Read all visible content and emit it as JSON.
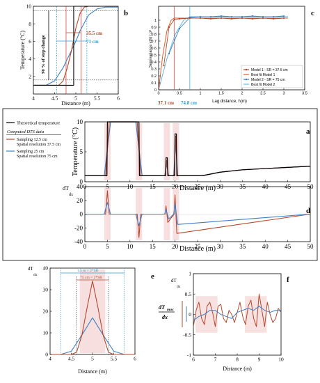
{
  "colors": {
    "theoretical": "#000000",
    "model1": "#b5472a",
    "model2": "#3d7fc4",
    "shade": "#f3c9c9",
    "vline_red": "#d22b2b",
    "vline_blue": "#2a9fd6",
    "dotted": "#222222"
  },
  "panels": {
    "a": {
      "letter": "a",
      "ylabel": "Temperature (°C)",
      "xlabel": "Distance (m)",
      "legend": {
        "theoretical": "Theoretical temperature",
        "dts_header": "Computed DTS data",
        "s1_line1": "Sampling 12.5 cm",
        "s1_line2": "Spatial resolution 37.5 cm",
        "s2_line1": "Sampling 25 cm",
        "s2_line2": "Spatial resolution 75 cm"
      }
    },
    "b": {
      "letter": "b",
      "ylabel": "Temperature (°C)",
      "xlabel": "Distance (m)",
      "annot_red": "35.5 cm",
      "annot_blue": "71 cm",
      "annot_step": "90 % of step change"
    },
    "c": {
      "letter": "c",
      "ylabel": "Semivariance γ(h) / σ²",
      "xlabel": "Lag distance, h(m)",
      "annot_red": "37.1 cm",
      "annot_blue": "74.8 cm",
      "legend": {
        "m1": "Model 1 - SR = 37.5 cm",
        "bf1": "Best fit Model 1",
        "m2": "Model 2 - SR = 75 cm",
        "bf2": "Best fit Model 2"
      }
    },
    "d": {
      "letter": "d",
      "ylabel_main": "dT",
      "ylabel_sub": "dx",
      "xlabel": "Distance (m)"
    },
    "e": {
      "letter": "e",
      "ylabel_main": "dT",
      "ylabel_sub": "dx",
      "xlabel": "Distance (m)",
      "annot_outer": "1.5 m = 2*SR",
      "annot_inner": "75 cm = 2*SR"
    },
    "f": {
      "letter": "f",
      "ylabel_main": "dT",
      "ylabel_sub": "dx",
      "xlabel": "Distance (m)",
      "annot_main": "dT",
      "annot_sub_max": "max",
      "annot_den": "dx"
    }
  },
  "chart_data": [
    {
      "panel": "a",
      "type": "line",
      "xlabel": "Distance (m)",
      "ylabel": "Temperature (°C)",
      "xlim": [
        0,
        50
      ],
      "ylim": [
        0,
        10
      ],
      "xticks": [
        0,
        5,
        10,
        15,
        20,
        25,
        30,
        35,
        40,
        45,
        50
      ],
      "yticks": [
        0,
        5,
        10
      ],
      "series": [
        {
          "name": "Theoretical temperature",
          "x": [
            0,
            4.9,
            5,
            12,
            12.1,
            17.9,
            18,
            18.3,
            18.4,
            19.9,
            20,
            20.3,
            20.4,
            26,
            30,
            35,
            40,
            45,
            50
          ],
          "y": [
            1,
            1,
            10,
            10,
            1,
            1,
            4,
            4,
            1,
            1,
            8,
            8,
            1,
            1,
            1.6,
            2,
            2.2,
            2.4,
            2.6
          ]
        },
        {
          "name": "Sampling 12.5 cm / Spatial resolution 37.5 cm",
          "x": [
            0,
            4.6,
            5,
            5.4,
            11.6,
            12,
            12.4,
            17.8,
            18.15,
            18.5,
            19.8,
            20.15,
            20.5,
            26,
            30,
            35,
            40,
            45,
            50
          ],
          "y": [
            1,
            1,
            5.5,
            10,
            10,
            5.5,
            1,
            1,
            3.6,
            1,
            1,
            7.6,
            1,
            1,
            1.6,
            2,
            2.2,
            2.4,
            2.6
          ]
        },
        {
          "name": "Sampling 25 cm / Spatial resolution 75 cm",
          "x": [
            0,
            4.3,
            5,
            5.7,
            11.3,
            12,
            12.7,
            17.7,
            18.15,
            18.6,
            19.7,
            20.15,
            20.6,
            26,
            30,
            35,
            40,
            45,
            50
          ],
          "y": [
            1,
            1,
            5.5,
            10,
            10,
            5.5,
            1,
            1,
            2.9,
            1,
            1,
            6.6,
            1,
            1,
            1.6,
            2,
            2.2,
            2.4,
            2.6
          ]
        }
      ]
    },
    {
      "panel": "b",
      "type": "line",
      "xlabel": "Distance (m)",
      "ylabel": "Temperature (°C)",
      "xlim": [
        4,
        6
      ],
      "ylim": [
        0,
        10
      ],
      "xticks": [
        4,
        4.5,
        5,
        5.5,
        6
      ],
      "yticks": [
        2,
        4,
        6,
        8,
        10
      ],
      "series": [
        {
          "name": "Theoretical temperature",
          "x": [
            4,
            4.95,
            4.95,
            6
          ],
          "y": [
            1,
            1,
            10,
            10
          ]
        },
        {
          "name": "Sampling 12.5 cm / Spatial resolution 37.5 cm",
          "x": [
            4,
            4.6,
            4.7,
            4.8,
            4.9,
            5.0,
            5.1,
            5.2,
            5.3,
            6
          ],
          "y": [
            1,
            1,
            1.5,
            3,
            5,
            7.5,
            9.2,
            9.9,
            10,
            10
          ]
        },
        {
          "name": "Sampling 25 cm / Spatial resolution 75 cm",
          "x": [
            4,
            4.3,
            4.5,
            4.7,
            4.9,
            5.0,
            5.1,
            5.3,
            5.5,
            5.7,
            6
          ],
          "y": [
            1,
            1,
            1.5,
            3,
            5,
            6,
            7.2,
            9,
            9.7,
            9.9,
            9.9
          ]
        }
      ],
      "vlines_red": [
        4.77,
        5.12
      ],
      "vlines_blue": [
        4.55,
        5.26
      ],
      "hlines": [
        1.6,
        9.5
      ]
    },
    {
      "panel": "c",
      "type": "line",
      "xlabel": "Lag distance, h(m)",
      "ylabel": "Semivariance γ(h) / σ²",
      "xlim": [
        0,
        3.5
      ],
      "ylim": [
        0,
        1.2
      ],
      "xticks": [
        0,
        0.5,
        1,
        1.5,
        2,
        2.5,
        3,
        3.5
      ],
      "yticks": [
        0,
        0.1,
        0.2,
        0.3,
        0.4,
        0.5,
        0.6,
        0.7,
        0.8,
        0.9,
        1
      ],
      "vlines": [
        0.371,
        0.748
      ],
      "series": [
        {
          "name": "Model 1 - SR = 37.5 cm",
          "x": [
            0.125,
            0.25,
            0.375,
            0.5,
            0.75,
            1,
            1.25,
            1.5,
            1.75,
            2,
            2.25,
            2.5,
            2.75,
            3
          ],
          "y": [
            0.35,
            0.9,
            1.01,
            1.02,
            1.03,
            1.03,
            1.02,
            1.03,
            1.02,
            1.03,
            1.02,
            1.03,
            1.02,
            1.03
          ]
        },
        {
          "name": "Best fit Model 1",
          "x": [
            0,
            0.1,
            0.2,
            0.3,
            0.371,
            3.1
          ],
          "y": [
            0,
            0.5,
            0.85,
            1.0,
            1.03,
            1.03
          ]
        },
        {
          "name": "Model 2 - SR = 75 cm",
          "x": [
            0.25,
            0.5,
            0.75,
            1,
            1.25,
            1.5,
            1.75,
            2,
            2.25,
            2.5,
            2.75,
            3
          ],
          "y": [
            0.52,
            0.88,
            1.04,
            1.05,
            1.05,
            1.06,
            1.05,
            1.05,
            1.06,
            1.05,
            1.05,
            1.06
          ]
        },
        {
          "name": "Best fit Model 2",
          "x": [
            0,
            0.2,
            0.4,
            0.6,
            0.748,
            3.1
          ],
          "y": [
            0,
            0.45,
            0.8,
            1.0,
            1.05,
            1.05
          ]
        }
      ]
    },
    {
      "panel": "d",
      "type": "line",
      "xlabel": "Distance (m)",
      "ylabel": "dT/dx",
      "xlim": [
        0,
        50
      ],
      "ylim": [
        -40,
        40
      ],
      "xticks": [
        0,
        5,
        10,
        15,
        20,
        25,
        30,
        35,
        40,
        45,
        50
      ],
      "yticks": [
        -40,
        -20,
        0,
        20,
        40
      ],
      "series": [
        {
          "name": "Sampling 12.5 cm / Spatial resolution 37.5 cm",
          "x": [
            0,
            4.6,
            5,
            5.4,
            11.6,
            12,
            12.4,
            17.8,
            18.0,
            18.2,
            18.4,
            19.8,
            20.0,
            20.2,
            20.4,
            50
          ],
          "y": [
            0,
            0,
            34,
            0,
            0,
            -34,
            0,
            0,
            12,
            0,
            -12,
            0,
            28,
            0,
            -28,
            0
          ]
        },
        {
          "name": "Sampling 25 cm / Spatial resolution 75 cm",
          "x": [
            0,
            4.3,
            5,
            5.7,
            11.3,
            12,
            12.7,
            17.7,
            18.0,
            18.3,
            18.6,
            19.7,
            20.0,
            20.3,
            20.6,
            50
          ],
          "y": [
            0,
            0,
            17,
            0,
            0,
            -17,
            0,
            0,
            7,
            0,
            -7,
            0,
            15,
            0,
            -15,
            0
          ]
        }
      ]
    },
    {
      "panel": "e",
      "type": "line",
      "xlabel": "Distance (m)",
      "ylabel": "dT/dx",
      "xlim": [
        4,
        6
      ],
      "ylim": [
        0,
        40
      ],
      "xticks": [
        4,
        4.5,
        5,
        5.5,
        6
      ],
      "yticks": [
        0,
        10,
        20,
        30,
        40
      ],
      "vlines_blue": [
        4.25,
        5.75
      ],
      "vlines_red": [
        4.62,
        5.38
      ],
      "series": [
        {
          "name": "Sampling 12.5 cm / Spatial resolution 37.5 cm",
          "x": [
            4,
            4.5,
            4.625,
            4.75,
            4.875,
            5,
            5.125,
            5.25,
            5.375,
            5.5,
            6
          ],
          "y": [
            0,
            0,
            1,
            9,
            22,
            34,
            22,
            9,
            1,
            0,
            0
          ]
        },
        {
          "name": "Sampling 25 cm / Spatial resolution 75 cm",
          "x": [
            4,
            4.25,
            4.5,
            4.75,
            5,
            5.25,
            5.5,
            5.75,
            6
          ],
          "y": [
            0,
            0,
            1.5,
            9,
            17,
            9,
            1.5,
            0,
            0
          ]
        }
      ]
    },
    {
      "panel": "f",
      "type": "line",
      "xlabel": "Distance (m)",
      "ylabel": "dT/dx",
      "xlim": [
        6,
        10
      ],
      "ylim": [
        -1,
        1
      ],
      "xticks": [
        6,
        7,
        8,
        9,
        10
      ],
      "yticks": [
        -1,
        -0.5,
        0,
        0.5,
        1
      ],
      "series": [
        {
          "name": "Sampling 12.5 cm / Spatial resolution 37.5 cm",
          "x": [
            6,
            6.125,
            6.25,
            6.375,
            6.5,
            6.625,
            6.75,
            6.875,
            7,
            7.125,
            7.25,
            7.375,
            7.5,
            7.625,
            7.75,
            7.875,
            8,
            8.125,
            8.25,
            8.375,
            8.5,
            8.625,
            8.75,
            8.875,
            9,
            9.125,
            9.25,
            9.375,
            9.5,
            9.625,
            9.75,
            9.875,
            10
          ],
          "y": [
            -0.3,
            0.1,
            0.3,
            -0.1,
            -0.25,
            0.2,
            0.3,
            0.05,
            -0.3,
            0.2,
            0.25,
            -0.1,
            -0.2,
            0.1,
            0.0,
            -0.2,
            0.05,
            0.3,
            -0.05,
            -0.25,
            0.2,
            0.35,
            -0.1,
            -0.3,
            0.5,
            0.1,
            -0.3,
            0.3,
            0.0,
            -0.2,
            -0.1,
            0.15,
            0.05
          ]
        },
        {
          "name": "Sampling 25 cm / Spatial resolution 75 cm",
          "x": [
            6,
            6.25,
            6.5,
            6.75,
            7,
            7.25,
            7.5,
            7.75,
            8,
            8.25,
            8.5,
            8.75,
            9,
            9.25,
            9.5,
            9.75,
            10
          ],
          "y": [
            -0.15,
            -0.05,
            0.0,
            0.1,
            0.1,
            0.0,
            -0.05,
            -0.1,
            0.05,
            0.1,
            0.15,
            0.1,
            0.2,
            0.1,
            0.05,
            0.1,
            0.1
          ]
        }
      ]
    }
  ]
}
